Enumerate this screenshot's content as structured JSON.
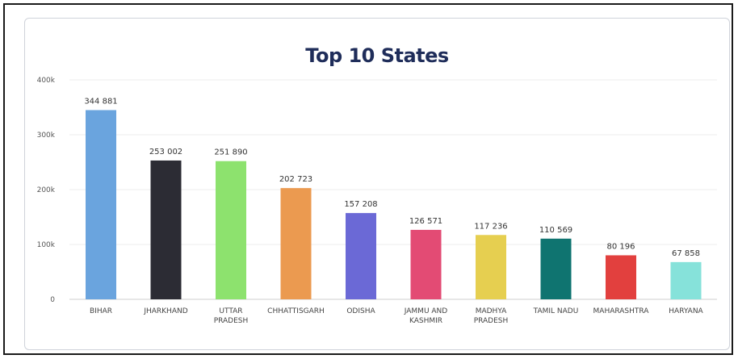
{
  "chart_data": {
    "type": "bar",
    "title": "Top 10 States",
    "categories": [
      [
        "BIHAR"
      ],
      [
        "JHARKHAND"
      ],
      [
        "UTTAR",
        "PRADESH"
      ],
      [
        "CHHATTISGARH"
      ],
      [
        "ODISHA"
      ],
      [
        "JAMMU AND",
        "KASHMIR"
      ],
      [
        "MADHYA",
        "PRADESH"
      ],
      [
        "TAMIL NADU"
      ],
      [
        "MAHARASHTRA"
      ],
      [
        "HARYANA"
      ]
    ],
    "values": [
      344881,
      253002,
      251890,
      202723,
      157208,
      126571,
      117236,
      110569,
      80196,
      67858
    ],
    "value_labels": [
      "344 881",
      "253 002",
      "251 890",
      "202 723",
      "157 208",
      "126 571",
      "117 236",
      "110 569",
      "80 196",
      "67 858"
    ],
    "colors": [
      "#6aa4de",
      "#2c2c34",
      "#8de26e",
      "#eb9a50",
      "#6b69d6",
      "#e34b74",
      "#e6cf50",
      "#0f7470",
      "#e2403e",
      "#86e2da"
    ],
    "ylim": [
      0,
      400000
    ],
    "yticks": [
      0,
      100000,
      200000,
      300000,
      400000
    ],
    "ytick_labels": [
      "0",
      "100k",
      "200k",
      "300k",
      "400k"
    ],
    "grid": true,
    "legend": "none"
  }
}
